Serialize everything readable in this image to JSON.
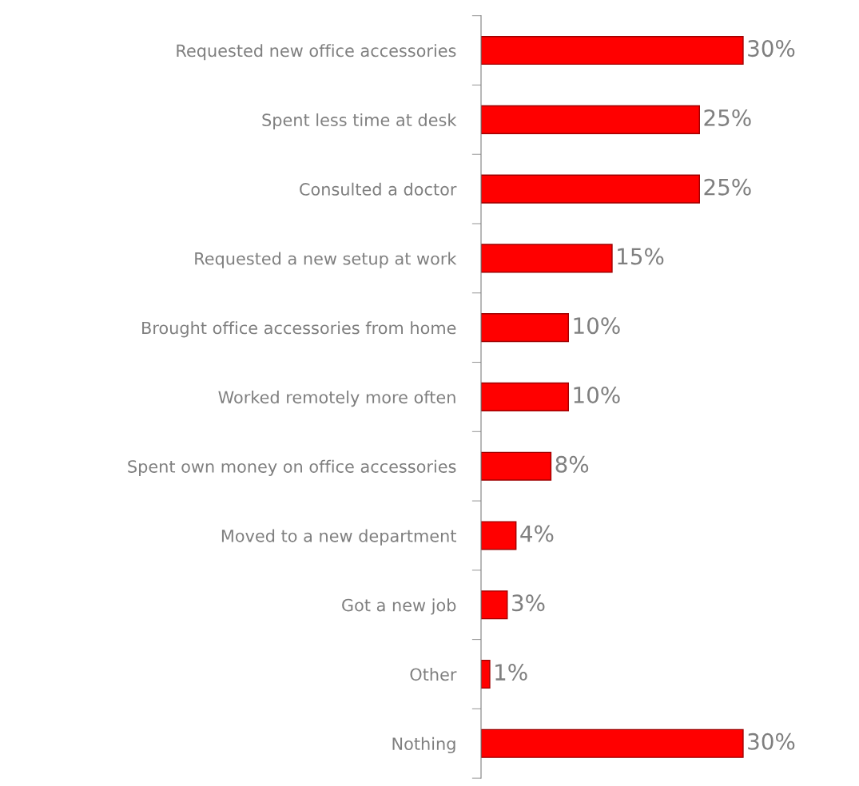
{
  "chart_data": {
    "type": "bar",
    "orientation": "horizontal",
    "categories": [
      "Requested new office accessories",
      "Spent less time at desk",
      "Consulted a doctor",
      "Requested a new setup at work",
      "Brought office accessories from home",
      "Worked remotely more often",
      "Spent own money on office accessories",
      "Moved to a new department",
      "Got a new job",
      "Other",
      "Nothing"
    ],
    "values": [
      30,
      25,
      25,
      15,
      10,
      10,
      8,
      4,
      3,
      1,
      30
    ],
    "value_labels": [
      "30%",
      "25%",
      "25%",
      "15%",
      "10%",
      "10%",
      "8%",
      "4%",
      "3%",
      "1%",
      "30%"
    ],
    "color": "#ff0000",
    "grid": false,
    "legend": false
  }
}
